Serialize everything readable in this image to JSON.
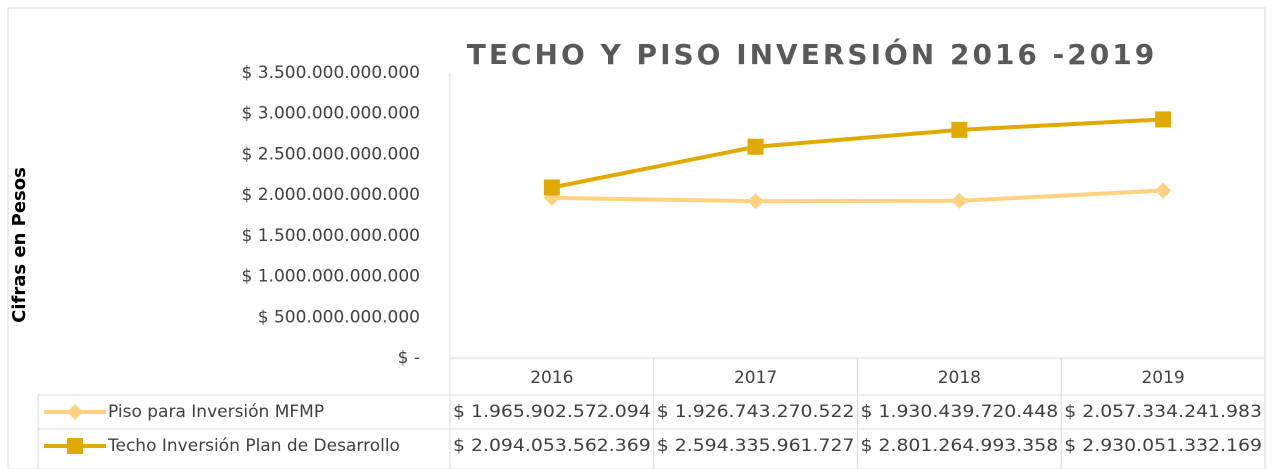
{
  "chart_data": {
    "type": "line",
    "title": "TECHO Y PISO INVERSIÓN 2016 -2019",
    "y_label": "Cifras en Pesos",
    "categories": [
      "2016",
      "2017",
      "2018",
      "2019"
    ],
    "series": [
      {
        "name": "Piso para Inversión MFMP",
        "color": "#ffd27f",
        "marker": "diamond",
        "values": [
          1965902572094,
          1926743270522,
          1930439720448,
          2057334241983
        ],
        "value_labels": [
          "$ 1.965.902.572.094",
          "$ 1.926.743.270.522",
          "$ 1.930.439.720.448",
          "$ 2.057.334.241.983"
        ]
      },
      {
        "name": "Techo Inversión Plan de Desarrollo",
        "color": "#e0aa00",
        "marker": "square",
        "values": [
          2094053562369,
          2594335961727,
          2801264993358,
          2930051332169
        ],
        "value_labels": [
          "$ 2.094.053.562.369",
          "$ 2.594.335.961.727",
          "$ 2.801.264.993.358",
          "$ 2.930.051.332.169"
        ]
      }
    ],
    "ylim": [
      0,
      3500000000000
    ],
    "yticks": [
      {
        "value": 0,
        "label": "$ -"
      },
      {
        "value": 500000000000,
        "label": "$ 500.000.000.000"
      },
      {
        "value": 1000000000000,
        "label": "$ 1.000.000.000.000"
      },
      {
        "value": 1500000000000,
        "label": "$ 1.500.000.000.000"
      },
      {
        "value": 2000000000000,
        "label": "$ 2.000.000.000.000"
      },
      {
        "value": 2500000000000,
        "label": "$ 2.500.000.000.000"
      },
      {
        "value": 3000000000000,
        "label": "$ 3.000.000.000.000"
      },
      {
        "value": 3500000000000,
        "label": "$ 3.500.000.000.000"
      }
    ],
    "grid": false
  }
}
